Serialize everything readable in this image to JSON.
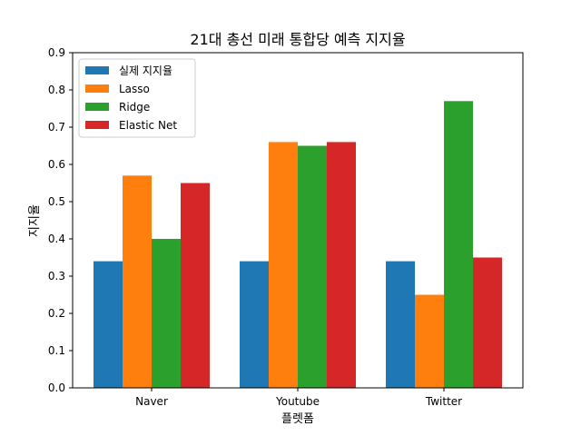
{
  "chart_data": {
    "type": "bar",
    "title": "21대 총선 미래 통합당 예측 지지율",
    "xlabel": "플렛폼",
    "ylabel": "지지율",
    "categories": [
      "Naver",
      "Youtube",
      "Twitter"
    ],
    "ylim": [
      0,
      0.9
    ],
    "yticks": [
      "0.0",
      "0.1",
      "0.2",
      "0.3",
      "0.4",
      "0.5",
      "0.6",
      "0.7",
      "0.8",
      "0.9"
    ],
    "legend_position": "top-left",
    "grid": false,
    "series": [
      {
        "name": "실제 지지율",
        "color": "#1f77b4",
        "values": [
          0.34,
          0.34,
          0.34
        ]
      },
      {
        "name": "Lasso",
        "color": "#ff7f0e",
        "values": [
          0.57,
          0.66,
          0.25
        ]
      },
      {
        "name": "Ridge",
        "color": "#2ca02c",
        "values": [
          0.4,
          0.65,
          0.77
        ]
      },
      {
        "name": "Elastic Net",
        "color": "#d62728",
        "values": [
          0.55,
          0.66,
          0.35
        ]
      }
    ]
  }
}
